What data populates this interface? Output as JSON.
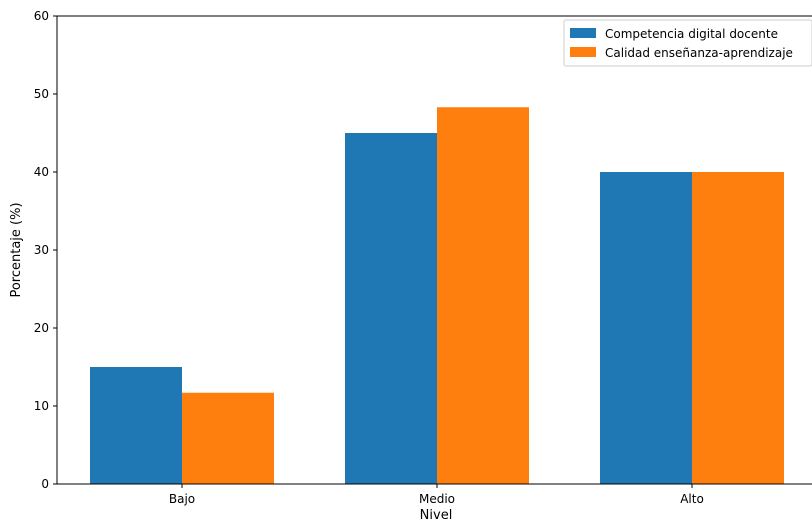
{
  "chart_data": {
    "type": "bar",
    "title": "",
    "xlabel": "Nivel",
    "ylabel": "Porcentaje (%)",
    "categories": [
      "Bajo",
      "Medio",
      "Alto"
    ],
    "series": [
      {
        "name": "Competencia digital docente",
        "values": [
          15,
          45,
          40
        ],
        "color": "#1f77b4"
      },
      {
        "name": "Calidad enseñanza-aprendizaje",
        "values": [
          11.7,
          48.3,
          40
        ],
        "color": "#ff7f0e"
      }
    ],
    "ylim": [
      0,
      60
    ],
    "yticks": [
      0,
      10,
      20,
      30,
      40,
      50,
      60
    ],
    "grid": false,
    "legend_position": "top-right"
  }
}
